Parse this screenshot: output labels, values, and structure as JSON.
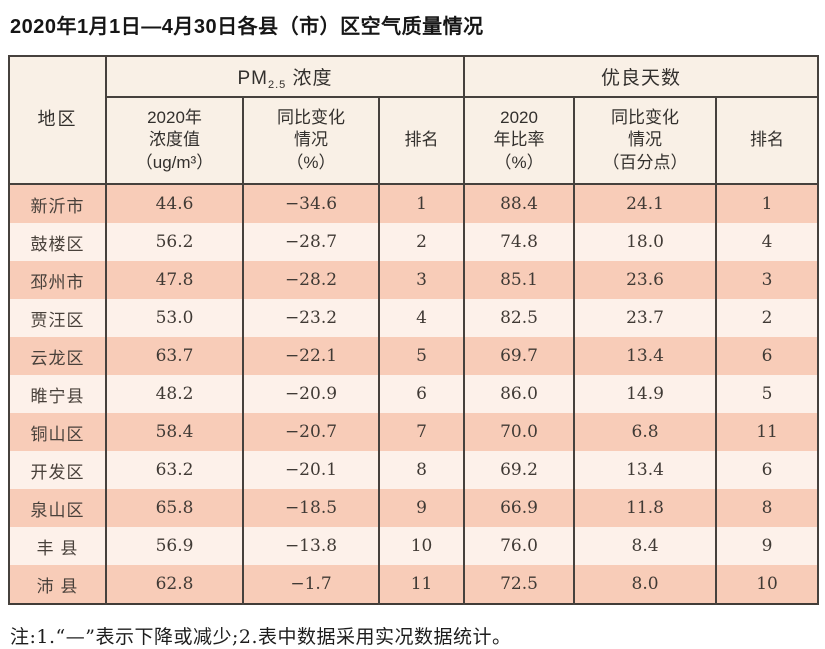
{
  "title": "2020年1月1日—4月30日各县（市）区空气质量情况",
  "table": {
    "header": {
      "region": "地区",
      "pm25_group": {
        "prefix": "PM",
        "sub": "2.5",
        "suffix": " 浓度"
      },
      "good_days_group": "优良天数",
      "pm_value": "2020年\n浓度值\n（ug/m³）",
      "pm_change": "同比变化\n情况\n（%）",
      "pm_rank": "排名",
      "ratio_value": "2020\n年比率\n（%）",
      "ratio_change": "同比变化\n情况\n（百分点）",
      "ratio_rank": "排名"
    },
    "rows": [
      {
        "region": "新沂市",
        "pm_value": "44.6",
        "pm_change": "−34.6",
        "pm_rank": "1",
        "ratio_value": "88.4",
        "ratio_change": "24.1",
        "ratio_rank": "1"
      },
      {
        "region": "鼓楼区",
        "pm_value": "56.2",
        "pm_change": "−28.7",
        "pm_rank": "2",
        "ratio_value": "74.8",
        "ratio_change": "18.0",
        "ratio_rank": "4"
      },
      {
        "region": "邳州市",
        "pm_value": "47.8",
        "pm_change": "−28.2",
        "pm_rank": "3",
        "ratio_value": "85.1",
        "ratio_change": "23.6",
        "ratio_rank": "3"
      },
      {
        "region": "贾汪区",
        "pm_value": "53.0",
        "pm_change": "−23.2",
        "pm_rank": "4",
        "ratio_value": "82.5",
        "ratio_change": "23.7",
        "ratio_rank": "2"
      },
      {
        "region": "云龙区",
        "pm_value": "63.7",
        "pm_change": "−22.1",
        "pm_rank": "5",
        "ratio_value": "69.7",
        "ratio_change": "13.4",
        "ratio_rank": "6"
      },
      {
        "region": "睢宁县",
        "pm_value": "48.2",
        "pm_change": "−20.9",
        "pm_rank": "6",
        "ratio_value": "86.0",
        "ratio_change": "14.9",
        "ratio_rank": "5"
      },
      {
        "region": "铜山区",
        "pm_value": "58.4",
        "pm_change": "−20.7",
        "pm_rank": "7",
        "ratio_value": "70.0",
        "ratio_change": "6.8",
        "ratio_rank": "11"
      },
      {
        "region": "开发区",
        "pm_value": "63.2",
        "pm_change": "−20.1",
        "pm_rank": "8",
        "ratio_value": "69.2",
        "ratio_change": "13.4",
        "ratio_rank": "6"
      },
      {
        "region": "泉山区",
        "pm_value": "65.8",
        "pm_change": "−18.5",
        "pm_rank": "9",
        "ratio_value": "66.9",
        "ratio_change": "11.8",
        "ratio_rank": "8"
      },
      {
        "region": "丰 县",
        "pm_value": "56.9",
        "pm_change": "−13.8",
        "pm_rank": "10",
        "ratio_value": "76.0",
        "ratio_change": "8.4",
        "ratio_rank": "9"
      },
      {
        "region": "沛 县",
        "pm_value": "62.8",
        "pm_change": "−1.7",
        "pm_rank": "11",
        "ratio_value": "72.5",
        "ratio_change": "8.0",
        "ratio_rank": "10"
      }
    ]
  },
  "footnote": "注:1.“—”表示下降或减少;2.表中数据采用实况数据统计。",
  "colors": {
    "row_odd": "#f8ccb8",
    "row_even": "#fdf1ea",
    "header_bg": "#f9f0e6",
    "border": "#46413d"
  }
}
